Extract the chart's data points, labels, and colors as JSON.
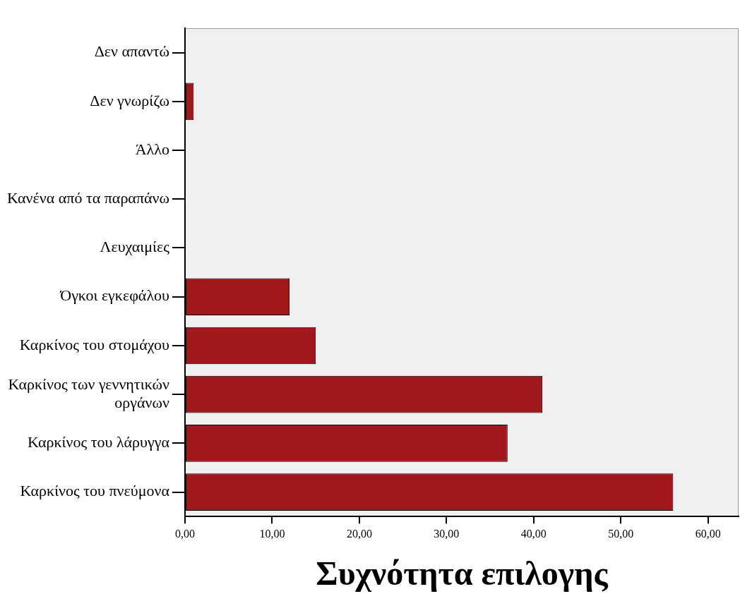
{
  "chart_data": {
    "type": "bar",
    "orientation": "horizontal",
    "xlabel": "Συχνότητα επιλογης",
    "categories": [
      "Δεν απαντώ",
      "Δεν γνωρίζω",
      "Άλλο",
      "Κανένα από τα παραπάνω",
      "Λευχαιμίες",
      "Όγκοι εγκεφάλου",
      "Καρκίνος του στομάχου",
      "Καρκίνος των γεννητικών οργάνων",
      "Καρκίνος του λάρυγγα",
      "Καρκίνος του πνεύμονα"
    ],
    "values": [
      0,
      1,
      0,
      0,
      0,
      12,
      15,
      41,
      37,
      56
    ],
    "color": "#a0171c",
    "xlim": [
      0,
      63.5
    ],
    "xticks": [
      {
        "value": 0,
        "label": "0,00"
      },
      {
        "value": 10,
        "label": "10,00"
      },
      {
        "value": 20,
        "label": "20,00"
      },
      {
        "value": 30,
        "label": "30,00"
      },
      {
        "value": 40,
        "label": "40,00"
      },
      {
        "value": 50,
        "label": "50,00"
      },
      {
        "value": 60,
        "label": "60,00"
      }
    ],
    "grid": false,
    "legend": false
  }
}
